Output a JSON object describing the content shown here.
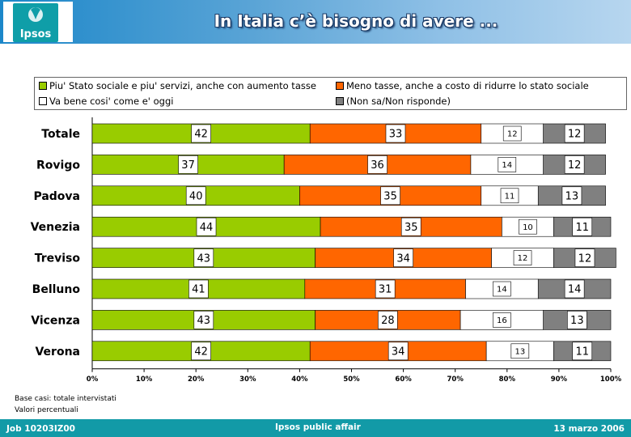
{
  "header": {
    "logo_text": "Ipsos",
    "title": "In Italia c’è bisogno di avere ..."
  },
  "colors": {
    "series_green": "#99cc00",
    "series_orange": "#ff6600",
    "series_white": "#ffffff",
    "series_gray": "#808080",
    "header_blue": "#1c87c9",
    "footer_teal": "#129aa7"
  },
  "chart_data": {
    "type": "bar",
    "orientation": "horizontal",
    "stacked": true,
    "normalized_percent": true,
    "categories": [
      "Totale",
      "Rovigo",
      "Padova",
      "Venezia",
      "Treviso",
      "Belluno",
      "Vicenza",
      "Verona"
    ],
    "series": [
      {
        "name": "Piu' Stato sociale e piu' servizi, anche con aumento tasse",
        "color": "#99cc00",
        "values": [
          42,
          37,
          40,
          44,
          43,
          41,
          43,
          42
        ]
      },
      {
        "name": "Meno tasse, anche a costo di ridurre lo stato sociale",
        "color": "#ff6600",
        "values": [
          33,
          36,
          35,
          35,
          34,
          31,
          28,
          34
        ]
      },
      {
        "name": "Va bene cosi' come e' oggi",
        "color": "#ffffff",
        "values": [
          12,
          14,
          11,
          10,
          12,
          14,
          16,
          13
        ]
      },
      {
        "name": "(Non sa/Non risponde)",
        "color": "#808080",
        "values": [
          12,
          12,
          13,
          11,
          12,
          14,
          13,
          11
        ]
      }
    ],
    "x_ticks": [
      "0%",
      "10%",
      "20%",
      "30%",
      "40%",
      "50%",
      "60%",
      "70%",
      "80%",
      "90%",
      "100%"
    ],
    "xlim": [
      0,
      100
    ],
    "legend_position": "top",
    "grid": false
  },
  "notes": {
    "line1": "Base casi: totale intervistati",
    "line2": "Valori percentuali"
  },
  "footer": {
    "job": "Job 10203IZ00",
    "center": "Ipsos public affair",
    "date": "13 marzo 2006"
  }
}
